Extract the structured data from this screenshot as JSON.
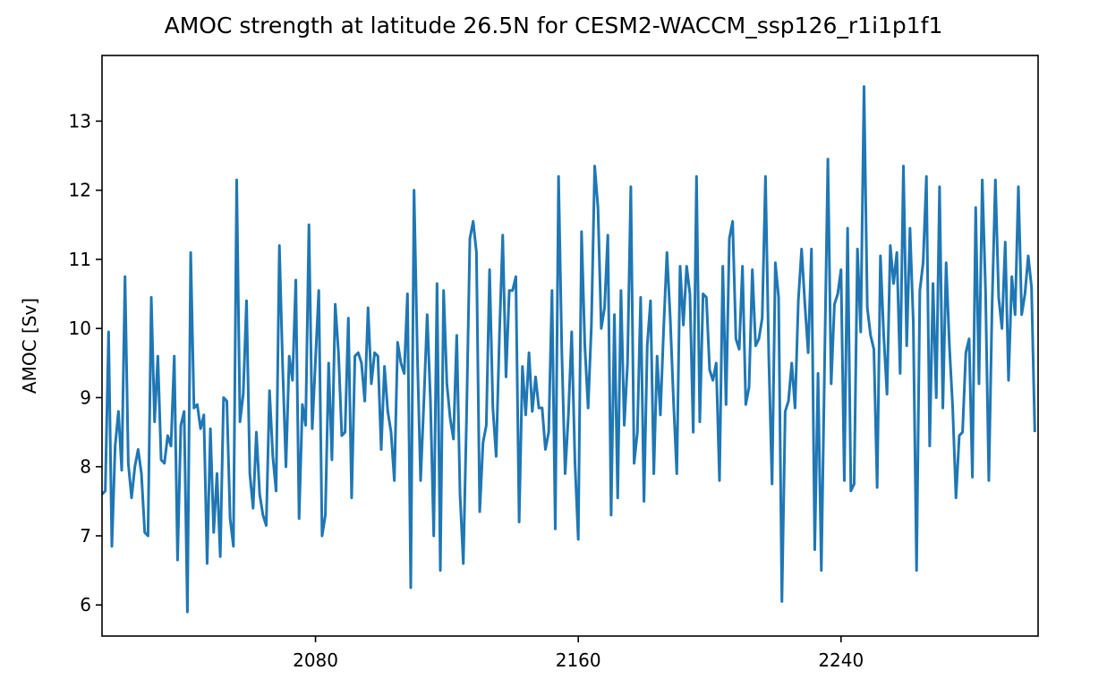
{
  "chart_data": {
    "type": "line",
    "title": "AMOC strength at latitude 26.5N for CESM2-WACCM_ssp126_r1i1p1f1",
    "xlabel": "",
    "ylabel": "AMOC [Sv]",
    "xlim": [
      2015,
      2300
    ],
    "ylim": [
      5.55,
      13.95
    ],
    "xticks": [
      2080,
      2160,
      2240
    ],
    "yticks": [
      6,
      7,
      8,
      9,
      10,
      11,
      12,
      13
    ],
    "grid": false,
    "line_color": "#1f77b4",
    "x_start": 2015,
    "x_step": 1,
    "series": [
      {
        "values": [
          7.6,
          7.65,
          9.95,
          6.85,
          8.3,
          8.8,
          7.95,
          10.75,
          8.05,
          7.55,
          8.0,
          8.25,
          7.9,
          7.05,
          7.0,
          10.45,
          8.65,
          9.6,
          8.1,
          8.05,
          8.45,
          8.3,
          9.6,
          6.65,
          8.6,
          8.8,
          5.9,
          11.1,
          8.85,
          8.9,
          8.55,
          8.75,
          6.6,
          8.55,
          7.05,
          7.9,
          6.7,
          9.0,
          8.95,
          7.25,
          6.85,
          12.15,
          8.65,
          9.05,
          10.4,
          7.9,
          7.4,
          8.5,
          7.6,
          7.3,
          7.15,
          9.1,
          8.15,
          7.65,
          11.2,
          9.45,
          8.0,
          9.6,
          9.25,
          10.7,
          7.25,
          8.9,
          8.6,
          11.5,
          8.55,
          9.55,
          10.55,
          7.0,
          7.3,
          9.5,
          8.1,
          10.35,
          9.65,
          8.45,
          8.5,
          10.15,
          7.55,
          9.6,
          9.65,
          9.5,
          8.95,
          10.3,
          9.2,
          9.65,
          9.6,
          8.25,
          9.45,
          8.8,
          8.5,
          7.8,
          9.8,
          9.5,
          9.35,
          10.5,
          6.25,
          12.0,
          9.65,
          7.8,
          8.95,
          10.2,
          8.95,
          7.0,
          10.65,
          6.5,
          10.55,
          9.2,
          8.7,
          8.4,
          9.9,
          7.6,
          6.6,
          8.75,
          11.3,
          11.55,
          11.1,
          7.35,
          8.35,
          8.6,
          10.85,
          8.85,
          8.15,
          9.9,
          11.35,
          9.3,
          10.55,
          10.55,
          10.75,
          7.2,
          9.45,
          8.75,
          9.65,
          8.8,
          9.3,
          8.85,
          8.85,
          8.25,
          8.5,
          10.55,
          7.1,
          12.2,
          9.65,
          7.9,
          8.75,
          9.95,
          8.05,
          6.95,
          11.4,
          9.75,
          8.85,
          10.05,
          12.35,
          11.75,
          10.0,
          10.3,
          11.35,
          7.3,
          10.2,
          7.55,
          10.55,
          8.6,
          9.5,
          12.05,
          8.05,
          8.5,
          10.45,
          7.5,
          9.75,
          10.4,
          7.9,
          9.6,
          8.75,
          10.0,
          11.1,
          10.15,
          8.95,
          7.9,
          10.9,
          10.05,
          10.9,
          10.5,
          8.5,
          12.2,
          8.65,
          10.5,
          10.45,
          9.4,
          9.25,
          9.5,
          7.8,
          10.9,
          8.9,
          11.3,
          11.55,
          9.85,
          9.7,
          10.9,
          8.9,
          9.15,
          10.85,
          9.75,
          9.85,
          10.15,
          12.2,
          9.6,
          7.75,
          10.95,
          10.45,
          6.05,
          8.8,
          8.95,
          9.5,
          8.85,
          10.4,
          11.15,
          10.35,
          9.65,
          11.15,
          6.8,
          9.35,
          6.5,
          9.5,
          12.45,
          9.2,
          10.35,
          10.5,
          10.85,
          7.8,
          11.45,
          7.65,
          7.75,
          11.15,
          9.95,
          13.5,
          10.3,
          9.9,
          9.7,
          7.7,
          11.05,
          9.9,
          9.05,
          11.2,
          10.65,
          11.1,
          9.35,
          12.35,
          9.75,
          11.45,
          10.1,
          6.5,
          10.55,
          10.95,
          12.2,
          8.3,
          10.65,
          9.0,
          12.05,
          8.85,
          10.95,
          9.75,
          8.85,
          7.55,
          8.45,
          8.5,
          9.65,
          9.85,
          7.85,
          11.75,
          9.2,
          12.15,
          10.55,
          7.8,
          10.35,
          12.15,
          10.45,
          10.0,
          11.25,
          9.25,
          10.75,
          10.2,
          12.05,
          10.2,
          10.5,
          11.05,
          10.6,
          8.5
        ]
      }
    ]
  }
}
